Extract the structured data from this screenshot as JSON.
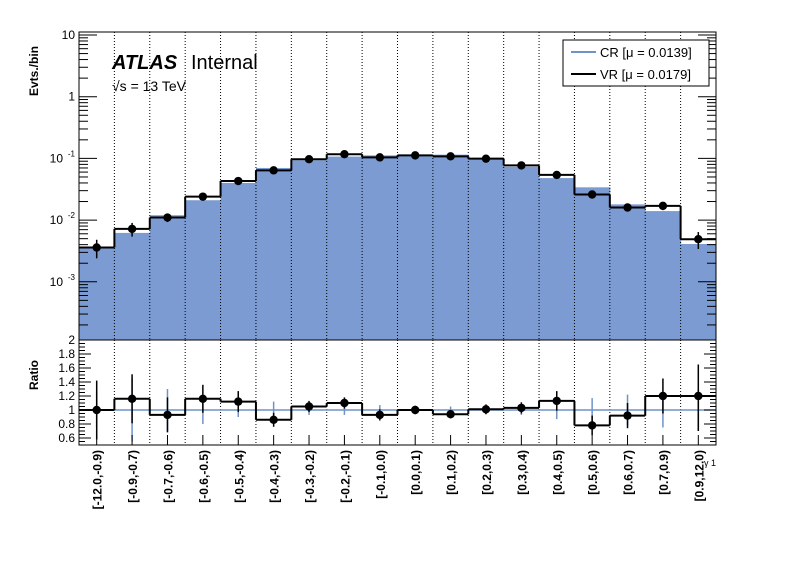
{
  "chart_data": [
    {
      "type": "bar",
      "panel": "main",
      "ylabel": "Evts./bin",
      "yscale": "log",
      "ylim": [
        0.00015,
        10
      ],
      "y_tick_labels": [
        "10",
        "1",
        "10^-1",
        "10^-2",
        "10^-3"
      ],
      "atlas_label": "ATLAS",
      "atlas_sub": "Internal",
      "energy_label": "√s = 13 TeV",
      "legend_placement": "top-right",
      "categories": [
        "[-12.0,-0.9)",
        "[-0.9,-0.7)",
        "[-0.7,-0.6)",
        "[-0.6,-0.5)",
        "[-0.5,-0.4)",
        "[-0.4,-0.3)",
        "[-0.3,-0.2)",
        "[-0.2,-0.1)",
        "[-0.1,0.0)",
        "[0.0,0.1)",
        "[0.1,0.2)",
        "[0.2,0.3)",
        "[0.3,0.4)",
        "[0.4,0.5)",
        "[0.5,0.6)",
        "[0.6,0.7)",
        "[0.7,0.9)",
        "[0.9,12.0)"
      ],
      "series": [
        {
          "name": "CR [μ = 0.0139]",
          "style": "filled histogram",
          "color": "#7b9bd2",
          "legend_line_color": "#6f93c9",
          "values": [
            0.0035,
            0.0062,
            0.012,
            0.021,
            0.04,
            0.07,
            0.093,
            0.107,
            0.112,
            0.113,
            0.115,
            0.098,
            0.073,
            0.048,
            0.034,
            0.018,
            0.014,
            0.0041
          ]
        },
        {
          "name": "VR [μ = 0.0179]",
          "style": "line histogram with points",
          "color": "#000000",
          "values": [
            0.0036,
            0.0072,
            0.011,
            0.024,
            0.043,
            0.064,
            0.097,
            0.117,
            0.104,
            0.112,
            0.108,
            0.099,
            0.077,
            0.054,
            0.026,
            0.016,
            0.017,
            0.0049
          ],
          "errors_low": [
            0.0012,
            0.0018,
            0.0017,
            0.0025,
            0.004,
            0.005,
            0.006,
            0.007,
            0.006,
            0.006,
            0.006,
            0.006,
            0.005,
            0.004,
            0.003,
            0.002,
            0.0025,
            0.0015
          ],
          "errors_high": [
            0.0012,
            0.0018,
            0.0017,
            0.0025,
            0.004,
            0.005,
            0.006,
            0.007,
            0.006,
            0.006,
            0.006,
            0.006,
            0.005,
            0.004,
            0.003,
            0.002,
            0.0025,
            0.0015
          ]
        }
      ]
    },
    {
      "type": "scatter",
      "panel": "ratio",
      "ylabel": "Ratio",
      "ylim": [
        0.5,
        2.0
      ],
      "y_ticks": [
        0.6,
        0.8,
        1,
        1.2,
        1.4,
        1.6,
        1.8,
        2
      ],
      "y_tick_labels": [
        "0.6",
        "0.8",
        "1",
        "1.2",
        "1.4",
        "1.6",
        "1.8",
        "2"
      ],
      "xlabel": "γ 1",
      "reference_line": 1,
      "ratio_values": [
        1.0,
        1.16,
        0.93,
        1.16,
        1.12,
        0.86,
        1.05,
        1.1,
        0.93,
        1.0,
        0.94,
        1.01,
        1.03,
        1.13,
        0.78,
        0.92,
        1.2,
        1.2
      ],
      "ratio_err_low": [
        0.42,
        0.35,
        0.25,
        0.2,
        0.15,
        0.1,
        0.08,
        0.08,
        0.08,
        0.06,
        0.06,
        0.07,
        0.08,
        0.14,
        0.14,
        0.18,
        0.25,
        0.5
      ],
      "ratio_err_high": [
        0.42,
        0.35,
        0.25,
        0.2,
        0.15,
        0.1,
        0.08,
        0.08,
        0.08,
        0.06,
        0.06,
        0.07,
        0.08,
        0.14,
        0.14,
        0.18,
        0.25,
        0.45
      ],
      "cr_err": [
        0.25,
        0.45,
        0.3,
        0.2,
        0.1,
        0.12,
        0.07,
        0.07,
        0.07,
        0.05,
        0.05,
        0.06,
        0.07,
        0.13,
        0.17,
        0.22,
        0.25,
        0.3
      ]
    }
  ]
}
